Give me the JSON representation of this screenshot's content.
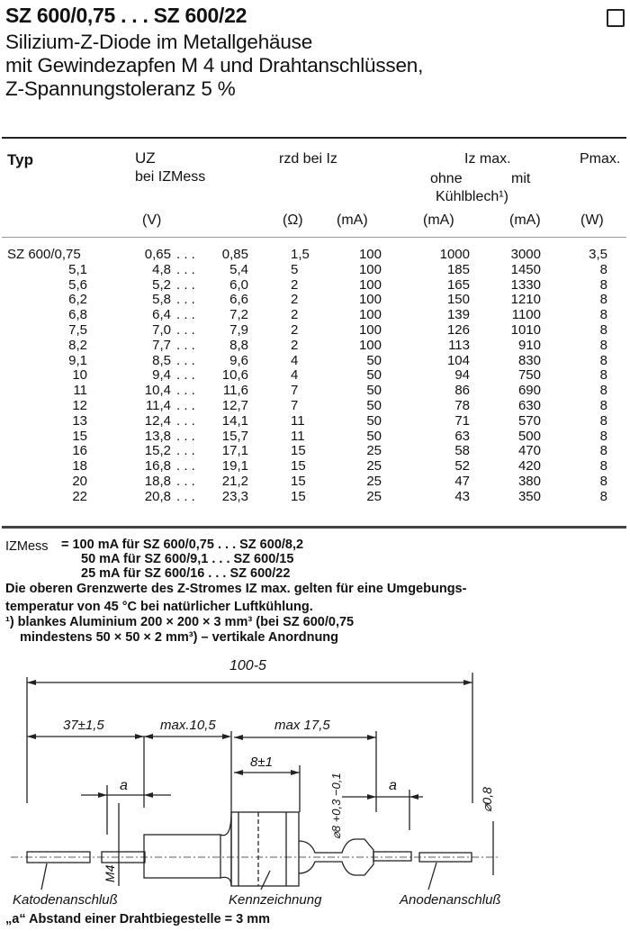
{
  "header": {
    "title": "SZ 600/0,75 . . . SZ 600/22",
    "subtitle_lines": [
      "Silizium-Z-Diode im Metallgehäuse",
      "mit Gewindezapfen M 4 und Drahtanschlüssen,",
      "Z-Spannungstoleranz 5 %"
    ]
  },
  "table": {
    "headers": {
      "typ": "Typ",
      "uz": "UZ",
      "uz_sub": "bei IZMess",
      "rzd": "rzd bei Iz",
      "iz_max": "Iz max.",
      "ohne": "ohne",
      "mit": "mit",
      "kuehlblech": "Kühlblech¹)",
      "pmax": "Pmax.",
      "unit_v": "(V)",
      "unit_ohm": "(Ω)",
      "unit_ma1": "(mA)",
      "unit_ma2": "(mA)",
      "unit_ma3": "(mA)",
      "unit_w": "(W)"
    },
    "rows": [
      {
        "typ": "SZ 600/0,75",
        "uz_min": "0,65",
        "uz_max": "0,85",
        "rzd": "1,5",
        "iz": "100",
        "ohne": "1000",
        "mit": "3000",
        "p": "3,5"
      },
      {
        "typ": "5,1",
        "uz_min": "4,8",
        "uz_max": "5,4",
        "rzd": "5",
        "iz": "100",
        "ohne": "185",
        "mit": "1450",
        "p": "8"
      },
      {
        "typ": "5,6",
        "uz_min": "5,2",
        "uz_max": "6,0",
        "rzd": "2",
        "iz": "100",
        "ohne": "165",
        "mit": "1330",
        "p": "8"
      },
      {
        "typ": "6,2",
        "uz_min": "5,8",
        "uz_max": "6,6",
        "rzd": "2",
        "iz": "100",
        "ohne": "150",
        "mit": "1210",
        "p": "8"
      },
      {
        "typ": "6,8",
        "uz_min": "6,4",
        "uz_max": "7,2",
        "rzd": "2",
        "iz": "100",
        "ohne": "139",
        "mit": "1100",
        "p": "8"
      },
      {
        "typ": "7,5",
        "uz_min": "7,0",
        "uz_max": "7,9",
        "rzd": "2",
        "iz": "100",
        "ohne": "126",
        "mit": "1010",
        "p": "8"
      },
      {
        "typ": "8,2",
        "uz_min": "7,7",
        "uz_max": "8,8",
        "rzd": "2",
        "iz": "100",
        "ohne": "113",
        "mit": "910",
        "p": "8"
      },
      {
        "typ": "9,1",
        "uz_min": "8,5",
        "uz_max": "9,6",
        "rzd": "4",
        "iz": "50",
        "ohne": "104",
        "mit": "830",
        "p": "8"
      },
      {
        "typ": "10",
        "uz_min": "9,4",
        "uz_max": "10,6",
        "rzd": "4",
        "iz": "50",
        "ohne": "94",
        "mit": "750",
        "p": "8"
      },
      {
        "typ": "11",
        "uz_min": "10,4",
        "uz_max": "11,6",
        "rzd": "7",
        "iz": "50",
        "ohne": "86",
        "mit": "690",
        "p": "8"
      },
      {
        "typ": "12",
        "uz_min": "11,4",
        "uz_max": "12,7",
        "rzd": "7",
        "iz": "50",
        "ohne": "78",
        "mit": "630",
        "p": "8"
      },
      {
        "typ": "13",
        "uz_min": "12,4",
        "uz_max": "14,1",
        "rzd": "11",
        "iz": "50",
        "ohne": "71",
        "mit": "570",
        "p": "8"
      },
      {
        "typ": "15",
        "uz_min": "13,8",
        "uz_max": "15,7",
        "rzd": "11",
        "iz": "50",
        "ohne": "63",
        "mit": "500",
        "p": "8"
      },
      {
        "typ": "16",
        "uz_min": "15,2",
        "uz_max": "17,1",
        "rzd": "15",
        "iz": "25",
        "ohne": "58",
        "mit": "470",
        "p": "8"
      },
      {
        "typ": "18",
        "uz_min": "16,8",
        "uz_max": "19,1",
        "rzd": "15",
        "iz": "25",
        "ohne": "52",
        "mit": "420",
        "p": "8"
      },
      {
        "typ": "20",
        "uz_min": "18,8",
        "uz_max": "21,2",
        "rzd": "15",
        "iz": "25",
        "ohne": "47",
        "mit": "380",
        "p": "8"
      },
      {
        "typ": "22",
        "uz_min": "20,8",
        "uz_max": "23,3",
        "rzd": "15",
        "iz": "25",
        "ohne": "43",
        "mit": "350",
        "p": "8"
      }
    ],
    "range_sep": ". . ."
  },
  "notes": {
    "izmess_label": "IZMess",
    "izmess_lines": [
      "= 100 mA für SZ 600/0,75 . . . SZ 600/8,2",
      "50 mA für SZ 600/9,1 . . . SZ 600/15",
      "25 mA für SZ 600/16 . . . SZ 600/22"
    ],
    "limit_line1": "Die oberen Grenzwerte des Z-Stromes IZ max. gelten für eine Umgebungs-",
    "limit_line2": "temperatur von 45 °C bei natürlicher Luftkühlung.",
    "footnote_line1": "¹) blankes Aluminium 200 × 200 × 3 mm³ (bei SZ 600/0,75",
    "footnote_line2": "mindestens 50 × 50 × 2 mm³) – vertikale Anordnung"
  },
  "drawing": {
    "dim_total": "100-5",
    "dim_cathode": "37±1,5",
    "dim_thread": "max.10,5",
    "dim_body": "max 17,5",
    "dim_hex": "8±1",
    "dim_a1": "a",
    "dim_a2": "a",
    "dim_diameter": "⌀8 +0,3 −0,1",
    "dim_wire": "⌀0,8",
    "dim_thread_size": "M4",
    "label_cathode": "Katodenanschluß",
    "label_marking": "Kennzeichnung",
    "label_anode": "Anodenanschluß"
  },
  "footer": "„a“ Abstand einer Drahtbiegestelle = 3 mm"
}
